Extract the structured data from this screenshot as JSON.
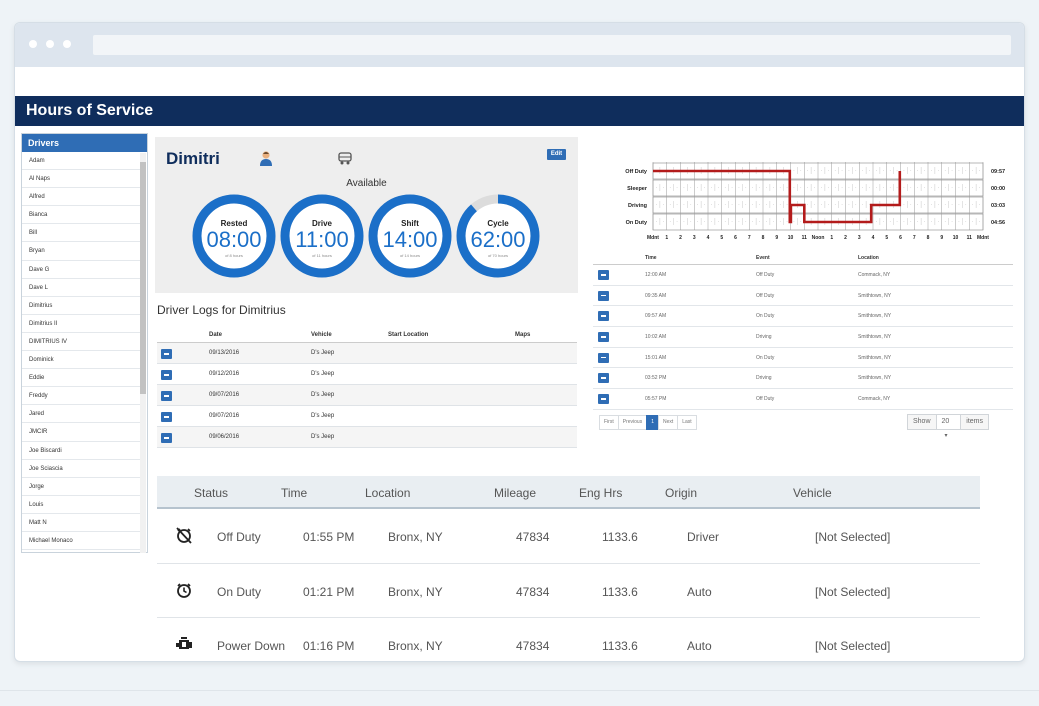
{
  "app": {
    "title": "Hours of Service"
  },
  "drivers": {
    "header": "Drivers",
    "items": [
      "Adam",
      "Al Naps",
      "Alfred",
      "Bianca",
      "Bill",
      "Bryan",
      "Dave G",
      "Dave L",
      "Dimitrius",
      "Dimitrius II",
      "DIMITRIUS IV",
      "Dominick",
      "Eddie",
      "Freddy",
      "Jared",
      "JMCIR",
      "Joe Biscardi",
      "Joe Sciascia",
      "Jorge",
      "Louis",
      "Matt N",
      "Michael Monaco"
    ]
  },
  "profile": {
    "name": "Dimitri",
    "edit_label": "Edit",
    "status": "Available",
    "user_icon": "user-icon",
    "truck_icon": "truck-icon",
    "gauges": [
      {
        "label": "Rested",
        "value": "08:00",
        "sub": "of 8 hours",
        "fraction": 1.0
      },
      {
        "label": "Drive",
        "value": "11:00",
        "sub": "of 11 hours",
        "fraction": 1.0
      },
      {
        "label": "Shift",
        "value": "14:00",
        "sub": "of 14 hours",
        "fraction": 1.0
      },
      {
        "label": "Cycle",
        "value": "62:00",
        "sub": "of 70 hours",
        "fraction": 0.886
      }
    ]
  },
  "logs": {
    "title": "Driver Logs for Dimitrius",
    "columns": [
      "Date",
      "Vehicle",
      "Start Location",
      "Maps"
    ],
    "rows": [
      {
        "date": "09/13/2016",
        "vehicle": "D's Jeep"
      },
      {
        "date": "09/12/2016",
        "vehicle": "D's Jeep"
      },
      {
        "date": "09/07/2016",
        "vehicle": "D's Jeep"
      },
      {
        "date": "09/07/2016",
        "vehicle": "D's Jeep"
      },
      {
        "date": "09/06/2016",
        "vehicle": "D's Jeep"
      }
    ]
  },
  "chart": {
    "rows": [
      "Off Duty",
      "Sleeper",
      "Driving",
      "On Duty"
    ],
    "totals": [
      "09:57",
      "00:00",
      "03:03",
      "04:56"
    ],
    "xticks": [
      "Mdnt",
      "1",
      "2",
      "3",
      "4",
      "5",
      "6",
      "7",
      "8",
      "9",
      "10",
      "11",
      "Noon",
      "1",
      "2",
      "3",
      "4",
      "5",
      "6",
      "7",
      "8",
      "9",
      "10",
      "11",
      "Mdnt"
    ]
  },
  "events": {
    "columns": [
      "Time",
      "Event",
      "Location"
    ],
    "rows": [
      {
        "time": "12:00 AM",
        "event": "Off Duty",
        "location": "Commack, NY"
      },
      {
        "time": "09:35 AM",
        "event": "Off Duty",
        "location": "Smithtown, NY"
      },
      {
        "time": "09:57 AM",
        "event": "On Duty",
        "location": "Smithtown, NY"
      },
      {
        "time": "10:02 AM",
        "event": "Driving",
        "location": "Smithtown, NY"
      },
      {
        "time": "15:01 AM",
        "event": "On Duty",
        "location": "Smithtown, NY"
      },
      {
        "time": "03:52 PM",
        "event": "Driving",
        "location": "Smithtown, NY"
      },
      {
        "time": "05:57 PM",
        "event": "Off Duty",
        "location": "Commack, NY"
      }
    ],
    "pager": [
      "First",
      "Previous",
      "1",
      "Next",
      "Last"
    ],
    "show_label": "Show",
    "page_size": "20",
    "items_label": "items"
  },
  "status_table": {
    "columns": [
      "Status",
      "Time",
      "Location",
      "Mileage",
      "Eng Hrs",
      "Origin",
      "Vehicle"
    ],
    "rows": [
      {
        "icon": "alarm-off-icon",
        "status": "Off Duty",
        "time": "01:55 PM",
        "location": "Bronx, NY",
        "mileage": "47834",
        "eng_hrs": "1133.6",
        "origin": "Driver",
        "vehicle": "[Not Selected]"
      },
      {
        "icon": "alarm-clock-icon",
        "status": "On Duty",
        "time": "01:21 PM",
        "location": "Bronx, NY",
        "mileage": "47834",
        "eng_hrs": "1133.6",
        "origin": "Auto",
        "vehicle": "[Not Selected]"
      },
      {
        "icon": "engine-icon",
        "status": "Power Down",
        "time": "01:16 PM",
        "location": "Bronx, NY",
        "mileage": "47834",
        "eng_hrs": "1133.6",
        "origin": "Auto",
        "vehicle": "[Not Selected]"
      }
    ]
  },
  "colors": {
    "header_bg": "#0f2d5c",
    "accent": "#1b6fc8",
    "button": "#2f6db5",
    "chart_line": "#b31b1b"
  }
}
